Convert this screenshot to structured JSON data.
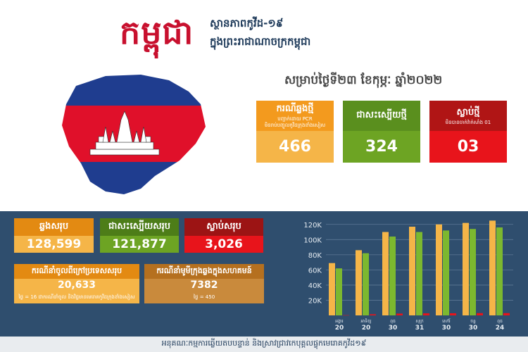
{
  "header": {
    "title_big": "កម្ពុជា",
    "title_line1": "ស្ថានភាពកូវីដ-១៩",
    "title_line2": "ក្នុងព្រះរាជាណាចក្រកម្ពុជា",
    "date": "សម្រាប់ថ្ងៃទី២៣ ខែកុម្ភៈ ឆ្នាំ២០២២"
  },
  "daily": {
    "new_cases": {
      "label": "ករណីឆ្លងថ្មី",
      "note1": "បញ្ជាក់ដោយ PCR",
      "note2": "មិនរាប់បញ្ចូលកូវីដក្រុងខាំងសៀស",
      "value": "466"
    },
    "recovered": {
      "label": "ជាសះស្បើយថ្មី",
      "value": "324"
    },
    "deaths": {
      "label": "ស្លាប់ថ្មី",
      "note1": "មិនបានចាក់វ៉ាក់សាំង 01",
      "value": "03"
    }
  },
  "totals": {
    "cases": {
      "label": "ឆ្លងសរុប",
      "value": "128,599"
    },
    "recovered": {
      "label": "ជាសះស្បើយសរុប",
      "value": "121,877"
    },
    "deaths": {
      "label": "ស្លាប់សរុប",
      "value": "3,026"
    },
    "imported": {
      "label": "ករណីនាំចូលពីក្រៅប្រទេសសរុប",
      "value": "20,633",
      "note": "ថ្ងៃ = 16 ជាករណីនាំចូល និងវិជ្ជមានមេរោគកូវីដក្រុងខាំងសៀស"
    },
    "local": {
      "label": "ករណីនាំមូមីក្រុងឆ្លងក្នុងសហគមន៍",
      "value": "7382",
      "note": "ថ្ងៃ = 450"
    }
  },
  "footer": {
    "text": "អនុគណៈកម្មការឆ្លើយតបបន្ទាន់ និងស្រាវជ្រាវកេបុគ្គលផ្ទុកមេរោគកូវីដ១៩"
  },
  "colors": {
    "cases": "#f5b548",
    "recovered": "#7cb82f",
    "deaths": "#e8141b",
    "background": "#2f4e6e"
  },
  "chart_data": {
    "type": "bar",
    "categories": [
      "អង្គារ 20",
      "អាទិត្យ 20",
      "ពុធ 30",
      "សុក្រ 31",
      "សៅរ៍ 30",
      "ចន្ទ 30",
      "ពុធ 24"
    ],
    "series": [
      {
        "values": [
          69000,
          86000,
          110000,
          117000,
          120000,
          122000,
          125000
        ],
        "color": "#f5b548"
      },
      {
        "values": [
          62000,
          82000,
          104000,
          110000,
          112000,
          114000,
          116000
        ],
        "color": "#7cb82f"
      },
      {
        "values": [
          300,
          1500,
          2400,
          2700,
          2800,
          3000,
          3026
        ],
        "color": "#e8141b"
      }
    ],
    "yticks": [
      "20K",
      "40K",
      "60K",
      "80K",
      "100K",
      "120K"
    ],
    "ylim": [
      0,
      130000
    ],
    "grid": true
  }
}
